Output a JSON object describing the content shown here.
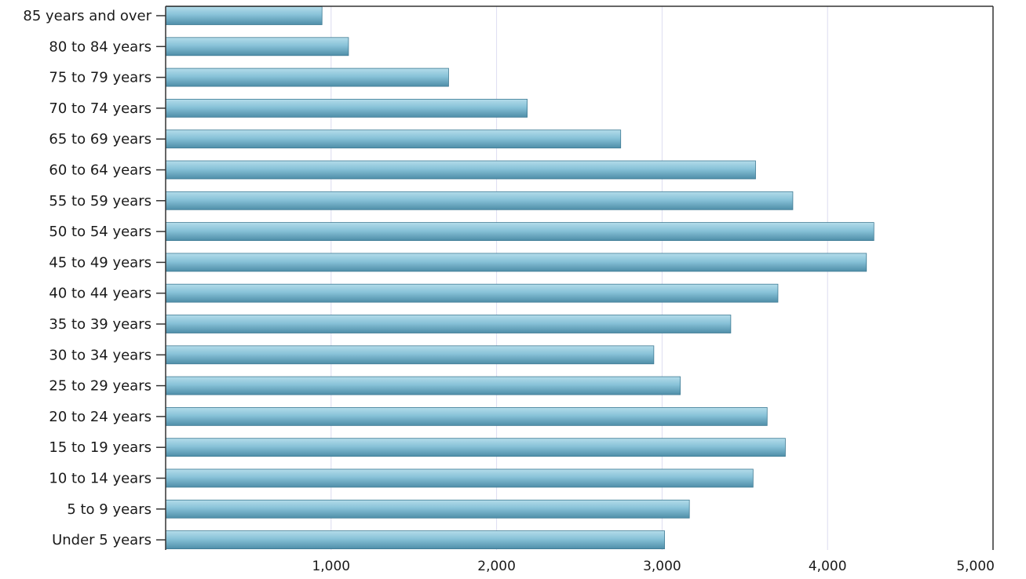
{
  "chart_data": {
    "type": "bar",
    "orientation": "horizontal",
    "categories": [
      "85 years and over",
      "80 to 84 years",
      "75 to 79 years",
      "70 to 74 years",
      "65 to 69 years",
      "60 to 64 years",
      "55 to 59 years",
      "50 to 54 years",
      "45 to 49 years",
      "40 to 44 years",
      "35 to 39 years",
      "30 to 34 years",
      "25 to 29 years",
      "20 to 24 years",
      "15 to 19 years",
      "10 to 14 years",
      "5 to 9 years",
      "Under 5 years"
    ],
    "values": [
      945,
      1105,
      1710,
      2185,
      2750,
      3565,
      3790,
      4280,
      4235,
      3700,
      3415,
      2950,
      3110,
      3635,
      3745,
      3550,
      3165,
      3015
    ],
    "xlim": [
      0,
      5000
    ],
    "xticks": [
      1000,
      2000,
      3000,
      4000,
      5000
    ],
    "xtick_labels": [
      "1,000",
      "2,000",
      "3,000",
      "4,000",
      "5,000"
    ],
    "title": "",
    "xlabel": "",
    "ylabel": "",
    "grid": "vertical",
    "legend": "none",
    "colors": {
      "bar_light": "#b4dcea",
      "bar_mid": "#88c2d8",
      "bar_dark": "#4f8ea8",
      "bar_stroke": "#3f7b94",
      "grid": "#dcdcf0",
      "axis": "#333333"
    }
  }
}
